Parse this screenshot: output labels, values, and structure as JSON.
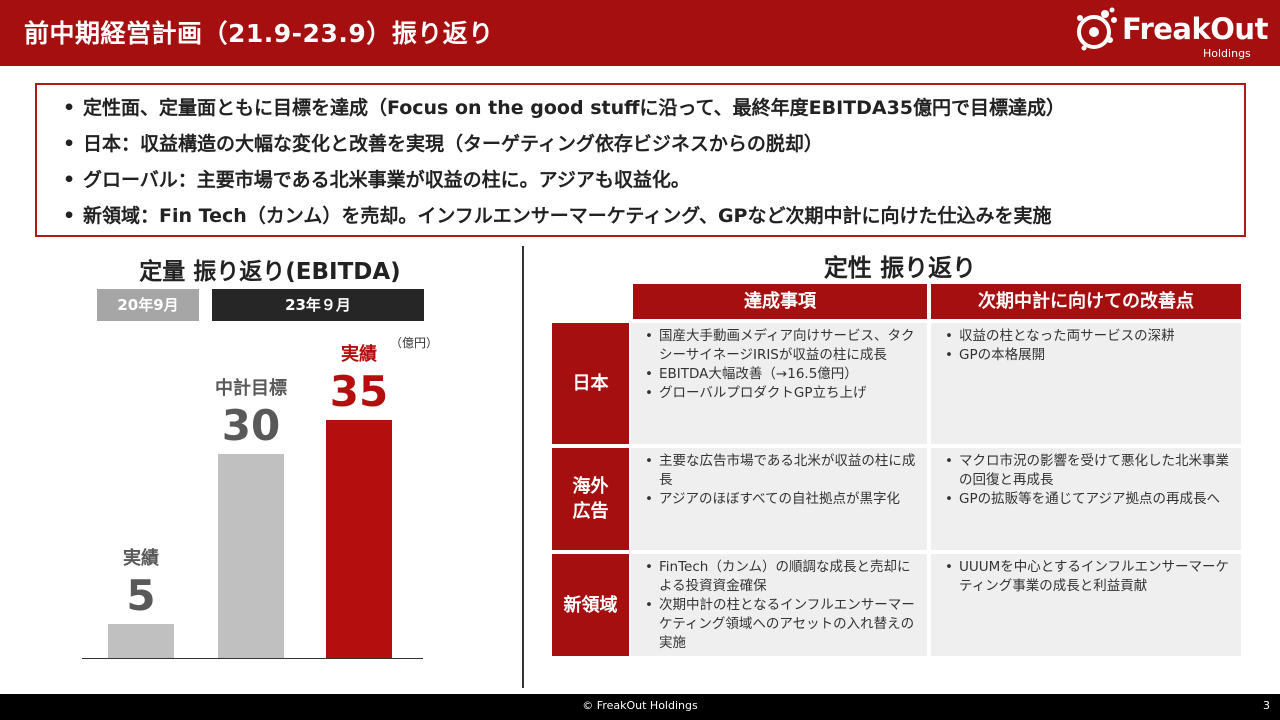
{
  "header": {
    "title": "前中期経営計画（21.9-23.9）振り返り",
    "logo_name": "FreakOut",
    "logo_sub": "Holdings"
  },
  "summary_bullets": [
    "定性面、定量面ともに目標を達成（Focus on the good stuffに沿って、最終年度EBITDA35億円で目標達成）",
    "日本：収益構造の大幅な変化と改善を実現（ターゲティング依存ビジネスからの脱却）",
    "グローバル：主要市場である北米事業が収益の柱に。アジアも収益化。",
    "新領域：Fin Tech（カンム）を売却。インフルエンサーマーケティング、GPなど次期中計に向けた仕込みを実施"
  ],
  "chart_data": {
    "type": "bar",
    "title": "定量 振り返り(EBITDA)",
    "unit": "（億円）",
    "periods": [
      "20年9月",
      "23年９月"
    ],
    "categories": [
      "実績",
      "中計目標",
      "実績"
    ],
    "values": [
      5,
      30,
      35
    ],
    "colors": [
      "#c0c0c0",
      "#c0c0c0",
      "#b40e0f"
    ],
    "ylim": [
      0,
      35
    ]
  },
  "table": {
    "title": "定性 振り返り",
    "columns": [
      "達成事項",
      "次期中計に向けての改善点"
    ],
    "rows": [
      {
        "label": "日本",
        "achievements": [
          "国産大手動画メディア向けサービス、タクシーサイネージIRISが収益の柱に成長",
          "EBITDA大幅改善（→16.5億円）",
          "グローバルプロダクトGP立ち上げ"
        ],
        "improvements": [
          "収益の柱となった両サービスの深耕",
          "GPの本格展開"
        ]
      },
      {
        "label": "海外広告",
        "label_lines": [
          "海外",
          "広告"
        ],
        "achievements": [
          "主要な広告市場である北米が収益の柱に成長",
          "アジアのほぼすべての自社拠点が黒字化"
        ],
        "improvements": [
          "マクロ市況の影響を受けて悪化した北米事業の回復と再成長",
          "GPの拡販等を通じてアジア拠点の再成長へ"
        ]
      },
      {
        "label": "新領域",
        "achievements": [
          "FinTech（カンム）の順調な成長と売却による投資資金確保",
          "次期中計の柱となるインフルエンサーマーケティング領域へのアセットの入れ替えの実施"
        ],
        "improvements": [
          "UUUMを中心とするインフルエンサーマーケティング事業の成長と利益貢献"
        ]
      }
    ]
  },
  "footer": {
    "copyright": "© FreakOut Holdings",
    "page": "3"
  }
}
